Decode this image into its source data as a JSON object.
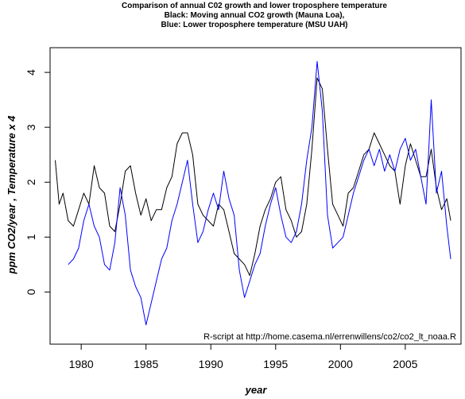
{
  "chart_data": {
    "type": "line",
    "title": "Comparison of annual C02 growth and lower troposphere temperature",
    "subtitle_1": "Black: Moving annual CO2 growth (Mauna Loa),",
    "subtitle_2": "Blue: Lower troposphere temperature (MSU UAH)",
    "xlabel": "year",
    "ylabel": "ppm CO2/year , Temperature x 4",
    "annotation": "R-script at http://home.casema.nl/errenwillens/co2/co2_lt_noaa.R",
    "xlim": [
      1977.6,
      2009.3
    ],
    "ylim": [
      -0.95,
      4.45
    ],
    "x_ticks": [
      1980,
      1985,
      1990,
      1995,
      2000,
      2005
    ],
    "x_tick_labels": [
      "1980",
      "1985",
      "1990",
      "1995",
      "2000",
      "2005"
    ],
    "y_ticks": [
      0,
      1,
      2,
      3,
      4
    ],
    "y_tick_labels": [
      "0",
      "1",
      "2",
      "3",
      "4"
    ],
    "legend": "none",
    "grid": false,
    "series": [
      {
        "color": "#000000",
        "x": [
          1978.0,
          1978.3,
          1978.6,
          1979.0,
          1979.4,
          1979.8,
          1980.2,
          1980.6,
          1981.0,
          1981.4,
          1981.8,
          1982.2,
          1982.6,
          1983.0,
          1983.4,
          1983.8,
          1984.2,
          1984.6,
          1985.0,
          1985.4,
          1985.8,
          1986.2,
          1986.6,
          1987.0,
          1987.4,
          1987.8,
          1988.2,
          1988.6,
          1989.0,
          1989.4,
          1989.8,
          1990.2,
          1990.6,
          1991.0,
          1991.4,
          1991.8,
          1992.2,
          1992.6,
          1993.0,
          1993.4,
          1993.8,
          1994.2,
          1994.6,
          1995.0,
          1995.4,
          1995.8,
          1996.2,
          1996.6,
          1997.0,
          1997.4,
          1997.8,
          1998.2,
          1998.6,
          1999.0,
          1999.4,
          1999.8,
          2000.2,
          2000.6,
          2001.0,
          2001.4,
          2001.8,
          2002.2,
          2002.6,
          2003.0,
          2003.4,
          2003.8,
          2004.2,
          2004.6,
          2005.0,
          2005.4,
          2005.8,
          2006.2,
          2006.6,
          2007.0,
          2007.4,
          2007.8,
          2008.2,
          2008.5
        ],
        "y": [
          2.4,
          1.6,
          1.8,
          1.3,
          1.2,
          1.5,
          1.8,
          1.6,
          2.3,
          1.9,
          1.8,
          1.2,
          1.1,
          1.6,
          2.2,
          2.3,
          1.8,
          1.4,
          1.7,
          1.3,
          1.5,
          1.5,
          1.9,
          2.1,
          2.7,
          2.9,
          2.9,
          2.5,
          1.6,
          1.4,
          1.3,
          1.2,
          1.6,
          1.5,
          1.1,
          0.7,
          0.6,
          0.5,
          0.3,
          0.7,
          1.2,
          1.5,
          1.7,
          2.0,
          2.1,
          1.5,
          1.3,
          1.0,
          1.1,
          1.6,
          2.6,
          3.9,
          3.7,
          2.6,
          1.6,
          1.4,
          1.2,
          1.8,
          1.9,
          2.2,
          2.5,
          2.6,
          2.9,
          2.7,
          2.5,
          2.3,
          2.2,
          1.6,
          2.3,
          2.7,
          2.4,
          2.1,
          2.1,
          2.6,
          1.9,
          1.5,
          1.7,
          1.3
        ]
      },
      {
        "color": "#0000ff",
        "x": [
          1979.0,
          1979.4,
          1979.8,
          1980.2,
          1980.6,
          1981.0,
          1981.4,
          1981.8,
          1982.2,
          1982.6,
          1983.0,
          1983.4,
          1983.8,
          1984.2,
          1984.6,
          1985.0,
          1985.4,
          1985.8,
          1986.2,
          1986.6,
          1987.0,
          1987.4,
          1987.8,
          1988.2,
          1988.6,
          1989.0,
          1989.4,
          1989.8,
          1990.2,
          1990.6,
          1991.0,
          1991.4,
          1991.8,
          1992.2,
          1992.6,
          1993.0,
          1993.4,
          1993.8,
          1994.2,
          1994.6,
          1995.0,
          1995.4,
          1995.8,
          1996.2,
          1996.6,
          1997.0,
          1997.4,
          1997.8,
          1998.2,
          1998.6,
          1999.0,
          1999.4,
          1999.8,
          2000.2,
          2000.6,
          2001.0,
          2001.4,
          2001.8,
          2002.2,
          2002.6,
          2003.0,
          2003.4,
          2003.8,
          2004.2,
          2004.6,
          2005.0,
          2005.4,
          2005.8,
          2006.2,
          2006.6,
          2007.0,
          2007.4,
          2007.8,
          2008.2,
          2008.5
        ],
        "y": [
          0.5,
          0.6,
          0.8,
          1.3,
          1.6,
          1.2,
          1.0,
          0.5,
          0.4,
          0.9,
          1.9,
          1.4,
          0.4,
          0.1,
          -0.1,
          -0.6,
          -0.2,
          0.2,
          0.6,
          0.8,
          1.3,
          1.6,
          2.0,
          2.4,
          1.6,
          0.9,
          1.1,
          1.5,
          1.8,
          1.5,
          2.2,
          1.7,
          1.4,
          0.4,
          -0.1,
          0.2,
          0.5,
          0.7,
          1.2,
          1.6,
          1.9,
          1.4,
          1.0,
          0.9,
          1.1,
          1.6,
          2.4,
          3.0,
          4.2,
          3.3,
          1.4,
          0.8,
          0.9,
          1.0,
          1.4,
          1.8,
          2.1,
          2.4,
          2.6,
          2.3,
          2.6,
          2.2,
          2.5,
          2.2,
          2.6,
          2.8,
          2.4,
          2.6,
          2.1,
          1.6,
          3.5,
          1.8,
          2.2,
          1.2,
          0.6
        ]
      }
    ]
  }
}
